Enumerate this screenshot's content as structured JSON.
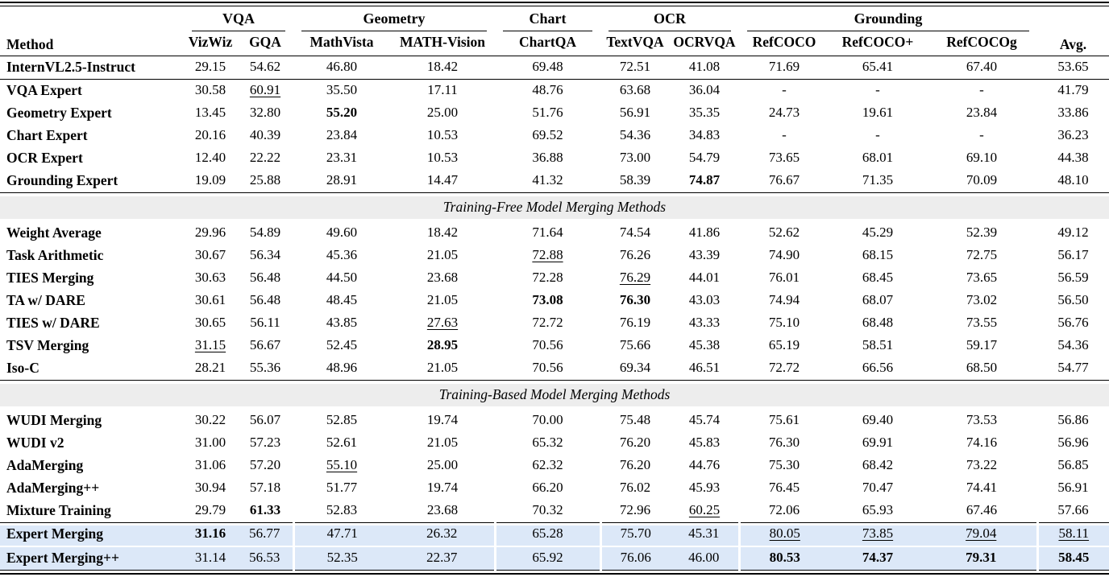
{
  "table": {
    "header": {
      "method": "Method",
      "avg": "Avg.",
      "groups": [
        {
          "label": "VQA",
          "span": 2
        },
        {
          "label": "Geometry",
          "span": 2
        },
        {
          "label": "Chart",
          "span": 1
        },
        {
          "label": "OCR",
          "span": 2
        },
        {
          "label": "Grounding",
          "span": 3
        }
      ],
      "columns": [
        "VizWiz",
        "GQA",
        "MathVista",
        "MATH-Vision",
        "ChartQA",
        "TextVQA",
        "OCRVQA",
        "RefCOCO",
        "RefCOCO+",
        "RefCOCOg"
      ]
    },
    "sections": [
      {
        "band": null,
        "rows": [
          {
            "method": "InternVL2.5-Instruct",
            "v": [
              "29.15",
              "54.62",
              "46.80",
              "18.42",
              "69.48",
              "72.51",
              "41.08",
              "71.69",
              "65.41",
              "67.40",
              "53.65"
            ],
            "b": [],
            "u": []
          }
        ]
      },
      {
        "band": null,
        "rows": [
          {
            "method": "VQA Expert",
            "v": [
              "30.58",
              "60.91",
              "35.50",
              "17.11",
              "48.76",
              "63.68",
              "36.04",
              "-",
              "-",
              "-",
              "41.79"
            ],
            "b": [],
            "u": [
              1
            ]
          },
          {
            "method": "Geometry Expert",
            "v": [
              "13.45",
              "32.80",
              "55.20",
              "25.00",
              "51.76",
              "56.91",
              "35.35",
              "24.73",
              "19.61",
              "23.84",
              "33.86"
            ],
            "b": [
              2
            ],
            "u": []
          },
          {
            "method": "Chart Expert",
            "v": [
              "20.16",
              "40.39",
              "23.84",
              "10.53",
              "69.52",
              "54.36",
              "34.83",
              "-",
              "-",
              "-",
              "36.23"
            ],
            "b": [],
            "u": []
          },
          {
            "method": "OCR Expert",
            "v": [
              "12.40",
              "22.22",
              "23.31",
              "10.53",
              "36.88",
              "73.00",
              "54.79",
              "73.65",
              "68.01",
              "69.10",
              "44.38"
            ],
            "b": [],
            "u": []
          },
          {
            "method": "Grounding Expert",
            "v": [
              "19.09",
              "25.88",
              "28.91",
              "14.47",
              "41.32",
              "58.39",
              "74.87",
              "76.67",
              "71.35",
              "70.09",
              "48.10"
            ],
            "b": [
              6
            ],
            "u": []
          }
        ]
      },
      {
        "band": "Training-Free Model Merging Methods",
        "rows": [
          {
            "method": "Weight Average",
            "v": [
              "29.96",
              "54.89",
              "49.60",
              "18.42",
              "71.64",
              "74.54",
              "41.86",
              "52.62",
              "45.29",
              "52.39",
              "49.12"
            ],
            "b": [],
            "u": []
          },
          {
            "method": "Task Arithmetic",
            "v": [
              "30.67",
              "56.34",
              "45.36",
              "21.05",
              "72.88",
              "76.26",
              "43.39",
              "74.90",
              "68.15",
              "72.75",
              "56.17"
            ],
            "b": [],
            "u": [
              4
            ]
          },
          {
            "method": "TIES Merging",
            "v": [
              "30.63",
              "56.48",
              "44.50",
              "23.68",
              "72.28",
              "76.29",
              "44.01",
              "76.01",
              "68.45",
              "73.65",
              "56.59"
            ],
            "b": [],
            "u": [
              5
            ]
          },
          {
            "method": "TA w/ DARE",
            "v": [
              "30.61",
              "56.48",
              "48.45",
              "21.05",
              "73.08",
              "76.30",
              "43.03",
              "74.94",
              "68.07",
              "73.02",
              "56.50"
            ],
            "b": [
              4,
              5
            ],
            "u": []
          },
          {
            "method": "TIES w/ DARE",
            "v": [
              "30.65",
              "56.11",
              "43.85",
              "27.63",
              "72.72",
              "76.19",
              "43.33",
              "75.10",
              "68.48",
              "73.55",
              "56.76"
            ],
            "b": [],
            "u": [
              3
            ]
          },
          {
            "method": "TSV Merging",
            "v": [
              "31.15",
              "56.67",
              "52.45",
              "28.95",
              "70.56",
              "75.66",
              "45.38",
              "65.19",
              "58.51",
              "59.17",
              "54.36"
            ],
            "b": [
              3
            ],
            "u": [
              0
            ]
          },
          {
            "method": "Iso-C",
            "v": [
              "28.21",
              "55.36",
              "48.96",
              "21.05",
              "70.56",
              "69.34",
              "46.51",
              "72.72",
              "66.56",
              "68.50",
              "54.77"
            ],
            "b": [],
            "u": []
          }
        ]
      },
      {
        "band": "Training-Based Model Merging Methods",
        "rows": [
          {
            "method": "WUDI Merging",
            "v": [
              "30.22",
              "56.07",
              "52.85",
              "19.74",
              "70.00",
              "75.48",
              "45.74",
              "75.61",
              "69.40",
              "73.53",
              "56.86"
            ],
            "b": [],
            "u": []
          },
          {
            "method": "WUDI v2",
            "v": [
              "31.00",
              "57.23",
              "52.61",
              "21.05",
              "65.32",
              "76.20",
              "45.83",
              "76.30",
              "69.91",
              "74.16",
              "56.96"
            ],
            "b": [],
            "u": []
          },
          {
            "method": "AdaMerging",
            "v": [
              "31.06",
              "57.20",
              "55.10",
              "25.00",
              "62.32",
              "76.20",
              "44.76",
              "75.30",
              "68.42",
              "73.22",
              "56.85"
            ],
            "b": [],
            "u": [
              2
            ]
          },
          {
            "method": "AdaMerging++",
            "v": [
              "30.94",
              "57.18",
              "51.77",
              "19.74",
              "66.20",
              "76.02",
              "45.93",
              "76.45",
              "70.47",
              "74.41",
              "56.91"
            ],
            "b": [],
            "u": []
          },
          {
            "method": "Mixture Training",
            "v": [
              "29.79",
              "61.33",
              "52.83",
              "23.68",
              "70.32",
              "72.96",
              "60.25",
              "72.06",
              "65.93",
              "67.46",
              "57.66"
            ],
            "b": [
              1
            ],
            "u": [
              6
            ]
          }
        ]
      },
      {
        "band": null,
        "highlight": true,
        "rows": [
          {
            "method": "Expert Merging",
            "v": [
              "31.16",
              "56.77",
              "47.71",
              "26.32",
              "65.28",
              "75.70",
              "45.31",
              "80.05",
              "73.85",
              "79.04",
              "58.11"
            ],
            "b": [
              0
            ],
            "u": [
              7,
              8,
              9,
              10
            ]
          },
          {
            "method": "Expert Merging++",
            "v": [
              "31.14",
              "56.53",
              "52.35",
              "22.37",
              "65.92",
              "76.06",
              "46.00",
              "80.53",
              "74.37",
              "79.31",
              "58.45"
            ],
            "b": [
              7,
              8,
              9,
              10
            ],
            "u": []
          }
        ]
      }
    ],
    "colors": {
      "highlight_row_bg": "#dce8f8",
      "section_band_bg": "#ededed",
      "rule": "#000000",
      "text": "#000000"
    }
  }
}
